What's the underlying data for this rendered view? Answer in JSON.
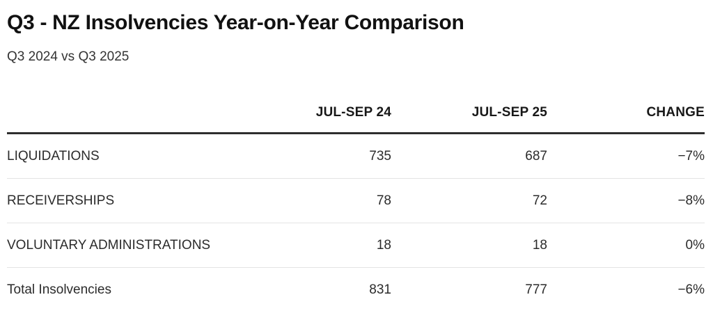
{
  "header": {
    "title": "Q3 - NZ Insolvencies Year-on-Year Comparison",
    "subtitle": "Q3 2024 vs Q3 2025"
  },
  "table": {
    "columns": {
      "label": "",
      "period1": "JUL-SEP 24",
      "period2": "JUL-SEP 25",
      "change": "CHANGE"
    },
    "rows": [
      {
        "label": "LIQUIDATIONS",
        "period1": "735",
        "period2": "687",
        "change": "−7%"
      },
      {
        "label": "RECEIVERSHIPS",
        "period1": "78",
        "period2": "72",
        "change": "−8%"
      },
      {
        "label": "VOLUNTARY ADMINISTRATIONS",
        "period1": "18",
        "period2": "18",
        "change": "0%"
      },
      {
        "label": "Total Insolvencies",
        "period1": "831",
        "period2": "777",
        "change": "−6%"
      }
    ]
  },
  "chart_data": {
    "type": "table",
    "title": "Q3 - NZ Insolvencies Year-on-Year Comparison",
    "subtitle": "Q3 2024 vs Q3 2025",
    "columns": [
      "",
      "JUL-SEP 24",
      "JUL-SEP 25",
      "CHANGE"
    ],
    "rows": [
      [
        "LIQUIDATIONS",
        735,
        687,
        "-7%"
      ],
      [
        "RECEIVERSHIPS",
        78,
        72,
        "-8%"
      ],
      [
        "VOLUNTARY ADMINISTRATIONS",
        18,
        18,
        "0%"
      ],
      [
        "Total Insolvencies",
        831,
        777,
        "-6%"
      ]
    ],
    "layout": {
      "header_rule": "thick-dark",
      "row_rules": "thin-light",
      "numeric_alignment": "right"
    },
    "colors": {
      "background": "#ffffff",
      "title_text": "#111111",
      "body_text": "#2b2b2b",
      "header_rule": "#2e2e2e",
      "row_rule": "#e4e4e4"
    }
  }
}
